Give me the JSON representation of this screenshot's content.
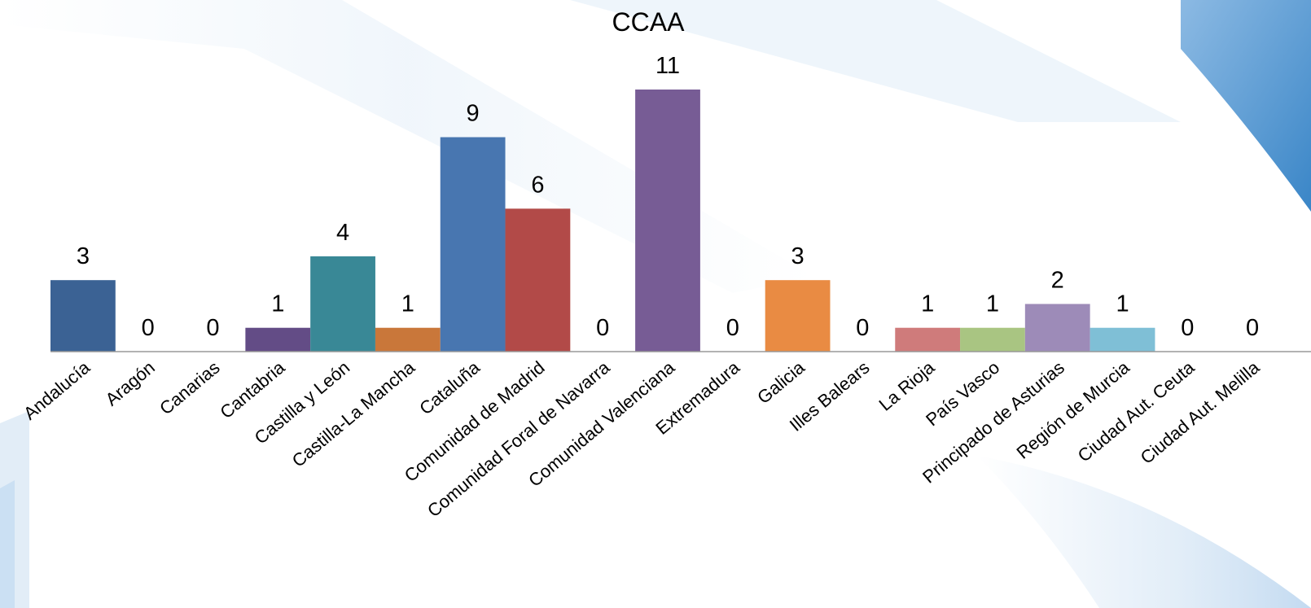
{
  "chart_data": {
    "type": "bar",
    "title": "CCAA",
    "xlabel": "",
    "ylabel": "",
    "ylim": [
      0,
      11
    ],
    "grid": false,
    "legend": "none",
    "categories": [
      "Andalucía",
      "Aragón",
      "Canarias",
      "Cantabria",
      "Castilla y León",
      "Castilla-La Mancha",
      "Cataluña",
      "Comunidad de Madrid",
      "Comunidad Foral de Navarra",
      "Comunidad Valenciana",
      "Extremadura",
      "Galicia",
      "Illes Balears",
      "La Rioja",
      "País Vasco",
      "Principado de Asturias",
      "Región de Murcia",
      "Ciudad Aut. Ceuta",
      "Ciudad Aut. Melilla"
    ],
    "values": [
      3,
      0,
      0,
      1,
      4,
      1,
      9,
      6,
      0,
      11,
      0,
      3,
      0,
      1,
      1,
      2,
      1,
      0,
      0
    ],
    "colors": [
      "#3b6294",
      "#9d3c3a",
      "#7d9a46",
      "#634c86",
      "#398896",
      "#c9773a",
      "#4876b0",
      "#b24a48",
      "#8ca654",
      "#775c95",
      "#3f95a8",
      "#e98b43",
      "#95b3d7",
      "#cf7b7b",
      "#a9c582",
      "#9d8bb8",
      "#7fbfd6",
      "#f3b079",
      "#b7c8e3"
    ],
    "axis_color": "#999999"
  }
}
